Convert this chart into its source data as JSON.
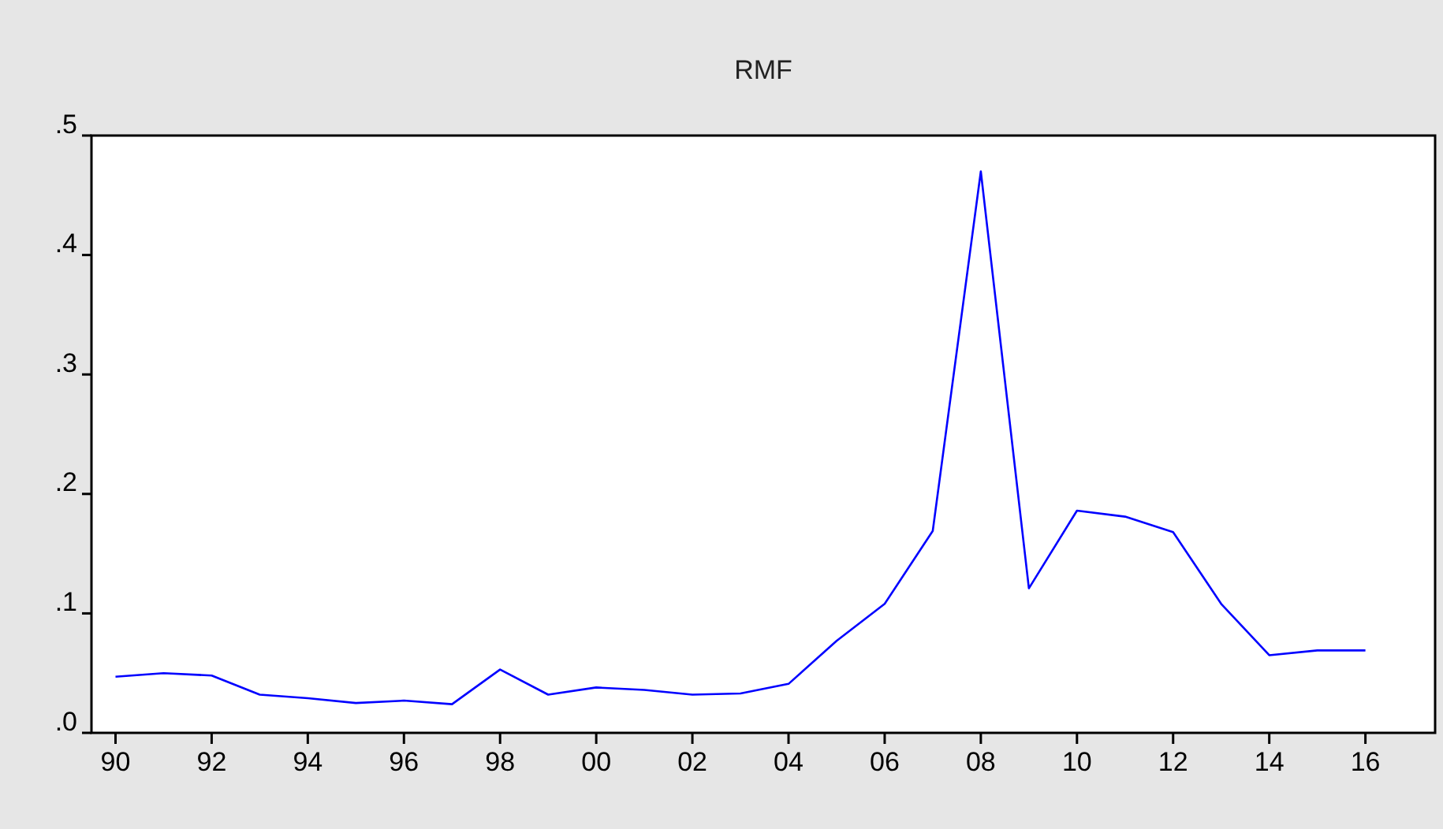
{
  "chart_data": {
    "type": "line",
    "title": "RMF",
    "x": [
      1990,
      1991,
      1992,
      1993,
      1994,
      1995,
      1996,
      1997,
      1998,
      1999,
      2000,
      2001,
      2002,
      2003,
      2004,
      2005,
      2006,
      2007,
      2008,
      2009,
      2010,
      2011,
      2012,
      2013,
      2014,
      2015,
      2016
    ],
    "series": [
      {
        "color": "#0000ff",
        "values": [
          0.047,
          0.05,
          0.048,
          0.032,
          0.029,
          0.025,
          0.027,
          0.024,
          0.053,
          0.032,
          0.038,
          0.036,
          0.032,
          0.033,
          0.041,
          0.077,
          0.108,
          0.169,
          0.47,
          0.121,
          0.186,
          0.181,
          0.168,
          0.108,
          0.065,
          0.069,
          0.069
        ]
      }
    ],
    "xlim": [
      1989.5,
      2017.45
    ],
    "xticks": [
      {
        "value": 1990,
        "label": "90"
      },
      {
        "value": 1992,
        "label": "92"
      },
      {
        "value": 1994,
        "label": "94"
      },
      {
        "value": 1996,
        "label": "96"
      },
      {
        "value": 1998,
        "label": "98"
      },
      {
        "value": 2000,
        "label": "00"
      },
      {
        "value": 2002,
        "label": "02"
      },
      {
        "value": 2004,
        "label": "04"
      },
      {
        "value": 2006,
        "label": "06"
      },
      {
        "value": 2008,
        "label": "08"
      },
      {
        "value": 2010,
        "label": "10"
      },
      {
        "value": 2012,
        "label": "12"
      },
      {
        "value": 2014,
        "label": "14"
      },
      {
        "value": 2016,
        "label": "16"
      }
    ],
    "ylim": [
      0,
      0.5
    ],
    "yticks": [
      {
        "value": 0,
        "label": ".0"
      },
      {
        "value": 0.1,
        "label": ".1"
      },
      {
        "value": 0.2,
        "label": ".2"
      },
      {
        "value": 0.3,
        "label": ".3"
      },
      {
        "value": 0.4,
        "label": ".4"
      },
      {
        "value": 0.5,
        "label": ".5"
      }
    ],
    "grid": false,
    "marker": "none",
    "line_style": "solid"
  }
}
